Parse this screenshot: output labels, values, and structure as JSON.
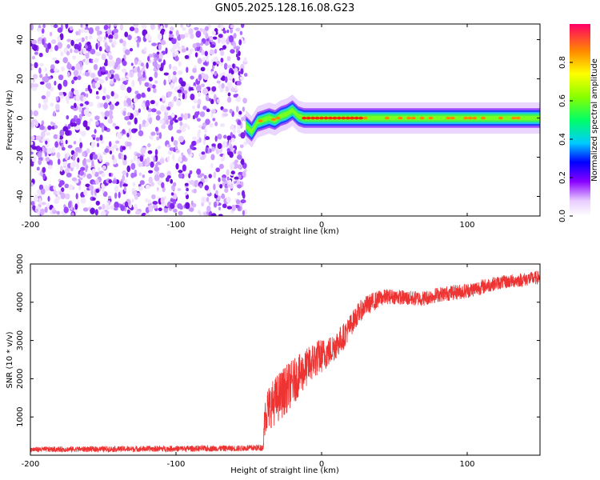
{
  "title": "GN05.2025.128.16.08.G23",
  "chart_data": [
    {
      "type": "heatmap",
      "title": "GN05.2025.128.16.08.G23",
      "xlabel": "Height of straight line (km)",
      "ylabel": "Frequency (Hz)",
      "xlim": [
        -200,
        150
      ],
      "ylim": [
        -50,
        48
      ],
      "x_ticks": [
        "-200",
        "-100",
        "0",
        "100"
      ],
      "y_ticks": [
        "-40",
        "-20",
        "0",
        "20",
        "40"
      ],
      "noise_region_x": [
        -200,
        -52
      ],
      "signal_start_x": -52,
      "signal_track": {
        "x": [
          -52,
          -48,
          -44,
          -40,
          -36,
          -32,
          -28,
          -24,
          -20,
          -16,
          -12,
          -8,
          -4,
          0,
          10,
          30,
          60,
          100,
          150
        ],
        "frequency": [
          -4,
          -7,
          -2,
          -1,
          0,
          -1,
          1,
          2,
          4,
          1,
          0,
          0,
          0,
          0,
          0,
          0,
          0,
          0,
          0
        ]
      },
      "colorbar": {
        "label": "Normalized spectral amplitude",
        "range": [
          0.0,
          1.0
        ],
        "ticks": [
          "0.0",
          "0.2",
          "0.4",
          "0.6",
          "0.8"
        ]
      },
      "grid": false
    },
    {
      "type": "line",
      "xlabel": "Height of straight line (km)",
      "ylabel": "SNR (10 * v/v)",
      "xlim": [
        -200,
        150
      ],
      "ylim": [
        0,
        5000
      ],
      "x_ticks": [
        "-200",
        "-100",
        "0",
        "100"
      ],
      "y_ticks": [
        "1000",
        "2000",
        "3000",
        "4000",
        "5000"
      ],
      "color": "#ee3333",
      "series": [
        {
          "x": [
            -200,
            -150,
            -100,
            -55,
            -40,
            -39,
            -35,
            -30,
            -25,
            -20,
            -15,
            -10,
            -5,
            0,
            5,
            10,
            15,
            20,
            25,
            30,
            35,
            40,
            45,
            50,
            60,
            70,
            80,
            90,
            100,
            110,
            120,
            130,
            140,
            150
          ],
          "values": [
            150,
            160,
            170,
            180,
            200,
            1100,
            1300,
            1500,
            1700,
            1900,
            2100,
            2300,
            2500,
            2600,
            2700,
            2900,
            3100,
            3400,
            3700,
            3900,
            4000,
            4100,
            4150,
            4150,
            4100,
            4100,
            4200,
            4250,
            4300,
            4400,
            4500,
            4550,
            4600,
            4650
          ],
          "noise": [
            70,
            75,
            80,
            80,
            90,
            600,
            600,
            650,
            650,
            600,
            550,
            500,
            500,
            450,
            400,
            380,
            350,
            300,
            280,
            260,
            250,
            220,
            200,
            200,
            200,
            200,
            200,
            200,
            200,
            200,
            180,
            180,
            180,
            180
          ]
        }
      ],
      "grid": false
    }
  ]
}
